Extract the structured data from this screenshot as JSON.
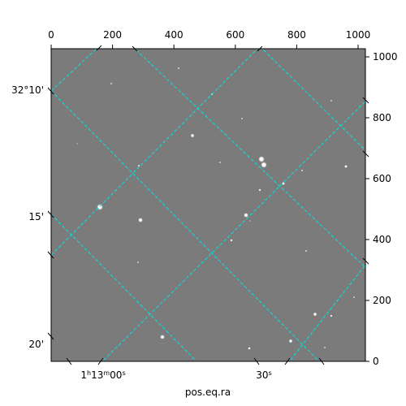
{
  "figure": {
    "xlabel": "pos.eq.ra",
    "top_ticks": [
      "0",
      "200",
      "400",
      "600",
      "800",
      "1000"
    ],
    "right_ticks": [
      "1000",
      "800",
      "600",
      "400",
      "200",
      "0"
    ],
    "left_ticks": [
      "32°10'",
      "15'",
      "20'"
    ],
    "bottom_ra_ticks": {
      "h": "1",
      "m": "13",
      "s": "00",
      "s2": "30"
    },
    "grid_color": "#00e5e5",
    "background": "#7a7a7a",
    "pixel_range": {
      "x": [
        0,
        1024
      ],
      "y": [
        0,
        1024
      ]
    }
  }
}
